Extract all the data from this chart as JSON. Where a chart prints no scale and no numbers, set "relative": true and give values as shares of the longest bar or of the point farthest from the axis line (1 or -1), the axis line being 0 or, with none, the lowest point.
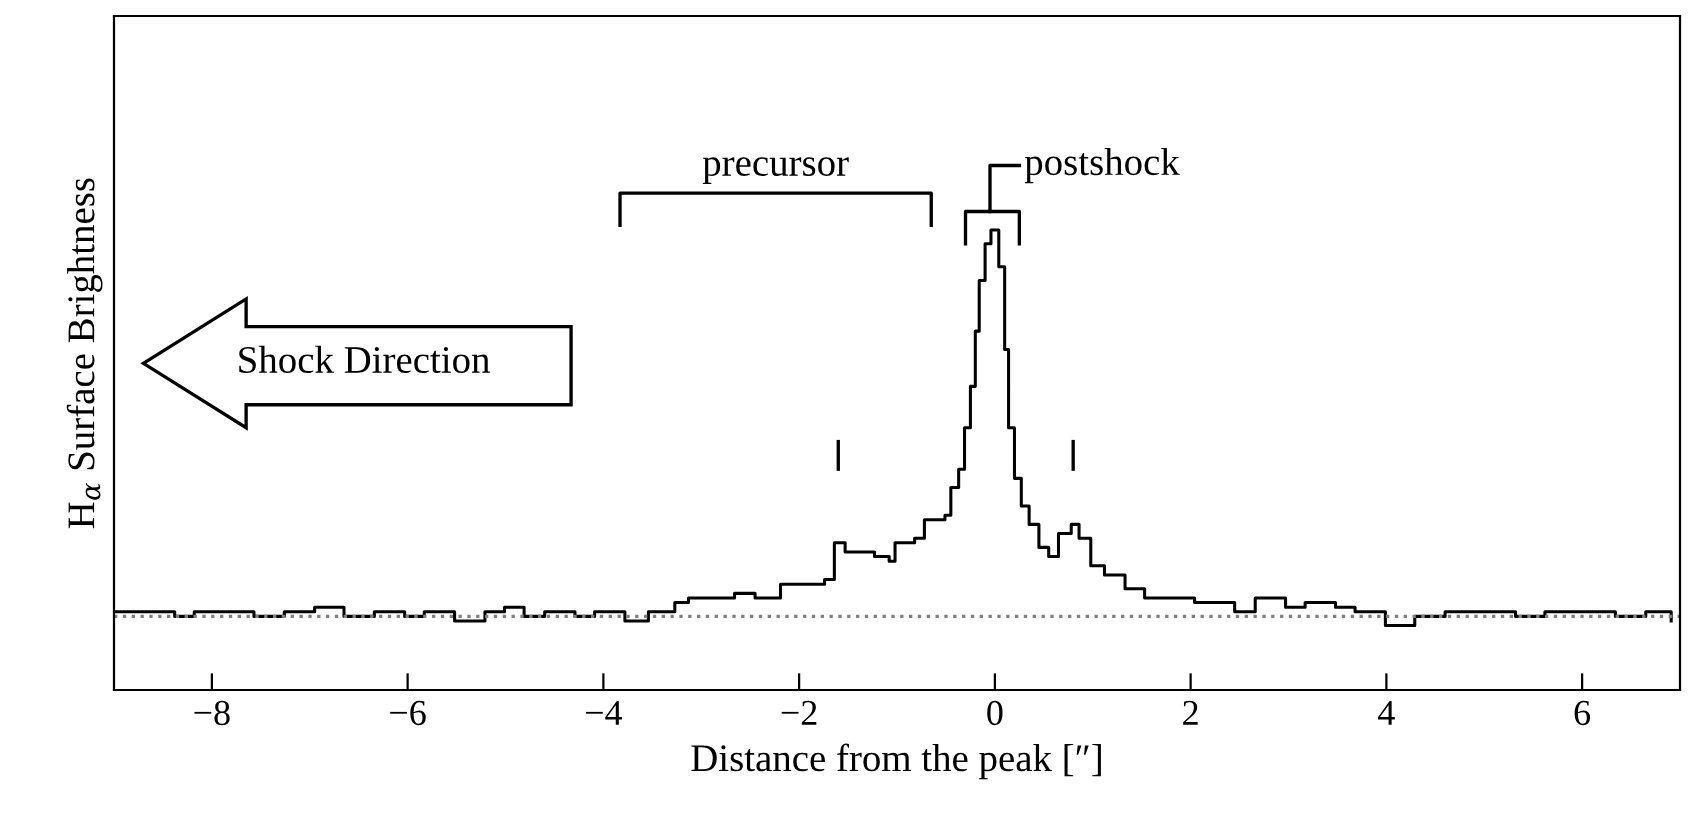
{
  "chart_data": {
    "type": "step",
    "relative": true,
    "xlabel": "Distance from the peak [″]",
    "ylabel": "H$_{α}$ Surface Brightness",
    "xlim": [
      -9,
      7
    ],
    "xticks": [
      {
        "value": -8,
        "label": "−8"
      },
      {
        "value": -6,
        "label": "−6"
      },
      {
        "value": -4,
        "label": "−4"
      },
      {
        "value": -2,
        "label": "−2"
      },
      0,
      2,
      4,
      6
    ],
    "grid": false,
    "legend": false,
    "line_style": "solid",
    "ref_lines": [
      {
        "axis": "y",
        "value": 0.16,
        "color": "#808080",
        "line_style": "dotted"
      }
    ],
    "annotations": [
      "precursor",
      "postshock",
      "Shock Direction"
    ],
    "series": [
      {
        "color": "#000000",
        "x": [
          -9.0,
          -8.69,
          -8.38,
          -8.18,
          -7.87,
          -7.57,
          -7.26,
          -6.95,
          -6.65,
          -6.34,
          -6.03,
          -5.83,
          -5.52,
          -5.21,
          -5.01,
          -4.81,
          -4.6,
          -4.29,
          -4.09,
          -3.78,
          -3.54,
          -3.27,
          -3.13,
          -2.86,
          -2.66,
          -2.45,
          -2.19,
          -1.94,
          -1.74,
          -1.64,
          -1.53,
          -1.23,
          -1.08,
          -1.02,
          -0.82,
          -0.72,
          -0.51,
          -0.45,
          -0.37,
          -0.31,
          -0.25,
          -0.2,
          -0.16,
          -0.1,
          -0.04,
          0.04,
          0.1,
          0.14,
          0.2,
          0.27,
          0.35,
          0.45,
          0.55,
          0.65,
          0.78,
          0.86,
          0.98,
          1.12,
          1.33,
          1.53,
          1.84,
          2.04,
          2.45,
          2.66,
          2.97,
          3.17,
          3.48,
          3.68,
          3.99,
          4.29,
          4.6,
          4.91,
          5.32,
          5.62,
          5.93,
          6.34,
          6.65,
          6.91
        ],
        "values": [
          0.17,
          0.17,
          0.16,
          0.17,
          0.17,
          0.16,
          0.17,
          0.18,
          0.16,
          0.17,
          0.16,
          0.17,
          0.15,
          0.17,
          0.18,
          0.16,
          0.17,
          0.16,
          0.17,
          0.15,
          0.17,
          0.19,
          0.2,
          0.2,
          0.21,
          0.2,
          0.23,
          0.23,
          0.24,
          0.32,
          0.3,
          0.29,
          0.28,
          0.32,
          0.33,
          0.37,
          0.38,
          0.44,
          0.48,
          0.57,
          0.66,
          0.78,
          0.89,
          0.97,
          1,
          0.92,
          0.74,
          0.57,
          0.46,
          0.4,
          0.36,
          0.31,
          0.29,
          0.34,
          0.36,
          0.33,
          0.27,
          0.25,
          0.22,
          0.2,
          0.2,
          0.19,
          0.17,
          0.2,
          0.18,
          0.19,
          0.18,
          0.17,
          0.14,
          0.16,
          0.17,
          0.17,
          0.16,
          0.17,
          0.17,
          0.16,
          0.17,
          0.15
        ]
      }
    ]
  }
}
